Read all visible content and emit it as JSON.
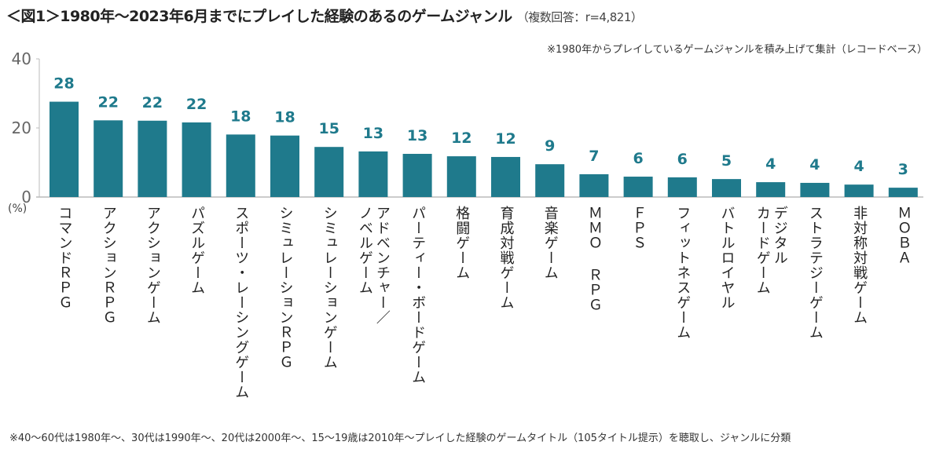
{
  "title": "＜図1＞1980年～2023年6月までにプレイした経験のあるのゲームジャンル",
  "subtitle": "（複数回答：r=4,821）",
  "note_top": "※1980年からプレイしているゲームジャンルを積み上げて集計（レコードベース）",
  "note_bottom": "※40～60代は1980年～、30代は1990年～、20代は2000年～、15～19歳は2010年～プレイした経験のゲームタイトル（105タイトル提示）を聴取し、ジャンルに分類",
  "colors": {
    "bar": "#1f7a8c",
    "label": "#1f7a8c"
  },
  "chart_data": {
    "type": "bar",
    "title": "＜図1＞1980年～2023年6月までにプレイした経験のあるのゲームジャンル",
    "ylabel": "(%)",
    "ylim": [
      0,
      40
    ],
    "yticks": [
      "0",
      "20",
      "40"
    ],
    "grid": false,
    "categories": [
      "コマンドＲＰＧ",
      "アクションＲＰＧ",
      "アクションゲーム",
      "パズルゲーム",
      "スポーツ・レーシングゲーム",
      "シミュレーションＲＰＧ",
      "シミュレーションゲーム",
      "アドベンチャー／\nノベルゲーム",
      "パーティー・ボードゲーム",
      "格闘ゲーム",
      "育成対戦ゲーム",
      "音楽ゲーム",
      "ＭＭＯ ＲＰＧ",
      "ＦＰＳ",
      "フィットネスゲーム",
      "バトルロイヤル",
      "デジタル\nカードゲーム",
      "ストラテジーゲーム",
      "非対称対戦ゲーム",
      "ＭＯＢＡ"
    ],
    "values": [
      27.6,
      22.2,
      22.1,
      21.6,
      18.1,
      17.8,
      14.5,
      13.2,
      12.5,
      11.8,
      11.6,
      9.5,
      6.6,
      5.9,
      5.7,
      5.2,
      4.3,
      4.1,
      3.6,
      2.7
    ],
    "data_labels": [
      "28",
      "22",
      "22",
      "22",
      "18",
      "18",
      "15",
      "13",
      "13",
      "12",
      "12",
      "9",
      "7",
      "6",
      "6",
      "5",
      "4",
      "4",
      "4",
      "3"
    ]
  }
}
